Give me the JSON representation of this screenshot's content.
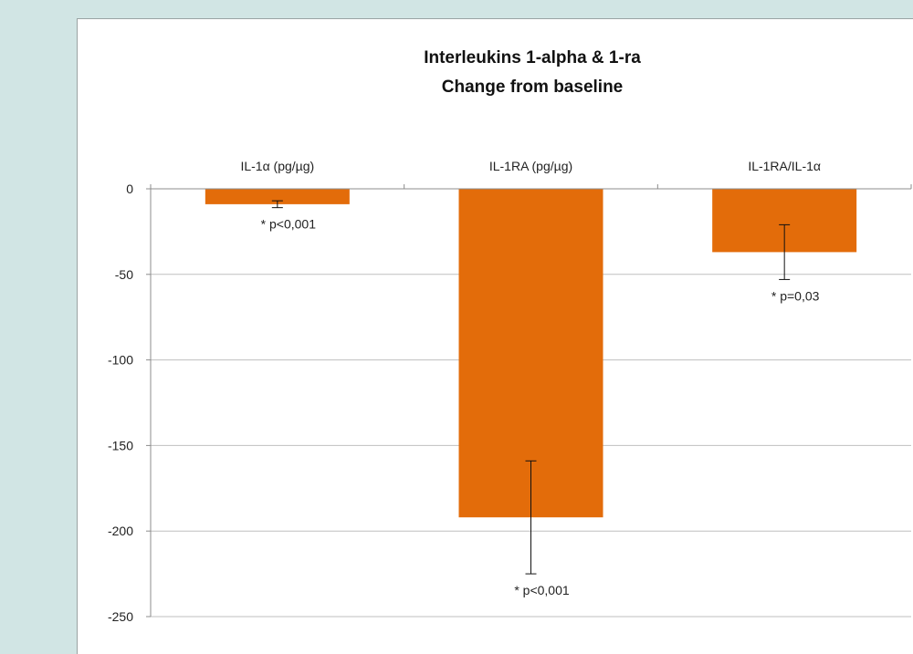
{
  "chart_data": {
    "type": "bar",
    "title": [
      "Interleukins 1-alpha & 1-ra",
      "Change from baseline"
    ],
    "categories": [
      "IL-1α (pg/µg)",
      "IL-1RA (pg/µg)",
      "IL-1RA/IL-1α"
    ],
    "values": [
      -9,
      -192,
      -37
    ],
    "error_low": [
      -11,
      -225,
      -53
    ],
    "error_high": [
      -7,
      -159,
      -21
    ],
    "annotations": [
      "* p<0,001",
      "* p<0,001",
      "* p=0,03"
    ],
    "ylim": [
      -250,
      0
    ],
    "yticks": [
      0,
      -50,
      -100,
      -150,
      -200,
      -250
    ],
    "ytick_labels": [
      "0",
      "-50",
      "-100",
      "-150",
      "-200",
      "-250"
    ],
    "grid": true,
    "bar_color": "#e36c0a",
    "background_color": "#d1e5e4"
  }
}
